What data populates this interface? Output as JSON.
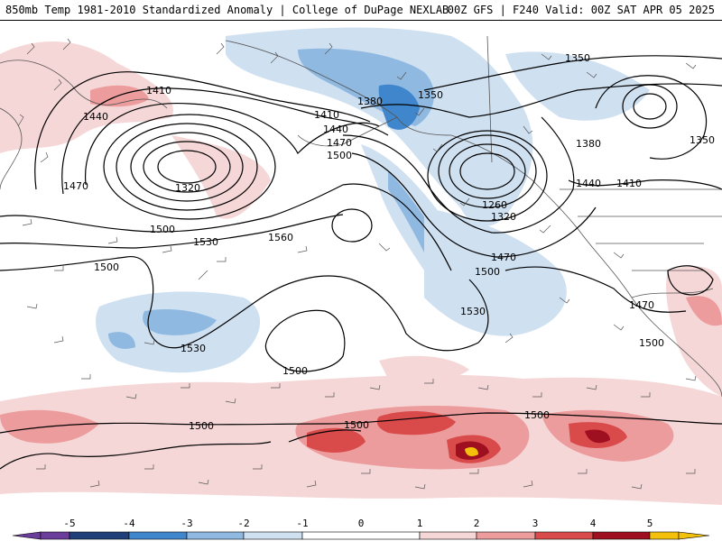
{
  "header": {
    "left": "850mb Temp 1981-2010 Standardized Anomaly | College of DuPage NEXLAB",
    "right": "00Z GFS | F240 Valid: 00Z SAT APR 05 2025"
  },
  "colors": {
    "neg5": "#6a3d9a",
    "neg4": "#1f3f78",
    "neg3": "#3f86cc",
    "neg2": "#8fb9e0",
    "neg1": "#cfe0f1",
    "zero": "#ffffff",
    "pos1": "#f6d7d7",
    "pos2": "#ec9c9c",
    "pos3": "#d94a4a",
    "pos4": "#9e1020",
    "pos5": "#f3c10c"
  },
  "colorbar": {
    "ticks": [
      "-5",
      "-4",
      "-3",
      "-2",
      "-1",
      "0",
      "1",
      "2",
      "3",
      "4",
      "5"
    ]
  },
  "contours": {
    "labels": [
      "1350",
      "1350",
      "1350",
      "1410",
      "1440",
      "1380",
      "1410",
      "1440",
      "1470",
      "1500",
      "1470",
      "1320",
      "1500",
      "1530",
      "1560",
      "1500",
      "1530",
      "1530",
      "1500",
      "1260",
      "1320",
      "1470",
      "1500",
      "1380",
      "1440",
      "1410",
      "1470",
      "1500",
      "1500",
      "1500",
      "1500"
    ]
  }
}
